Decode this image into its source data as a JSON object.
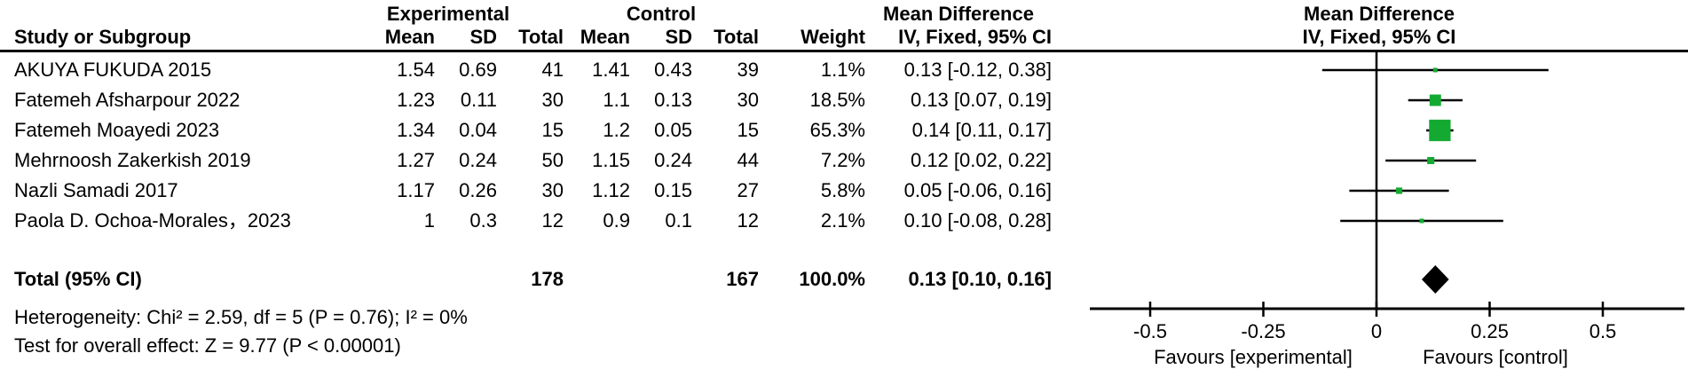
{
  "chart_data": {
    "type": "scatter",
    "subtype": "forest-plot-meta-analysis",
    "effect_measure": "Mean Difference, IV Fixed-effect, 95% CI",
    "group_headers": {
      "experimental": "Experimental",
      "control": "Control",
      "mean_difference_text": "Mean Difference",
      "mean_difference_plot": "Mean Difference"
    },
    "sub_headers": {
      "study": "Study or Subgroup",
      "mean": "Mean",
      "sd": "SD",
      "total": "Total",
      "weight": "Weight",
      "ci_text": "IV, Fixed, 95% CI",
      "ci_plot": "IV, Fixed, 95% CI"
    },
    "studies": [
      {
        "name": "AKUYA FUKUDA 2015",
        "exp_mean": "1.54",
        "exp_sd": "0.69",
        "exp_total": "41",
        "ctrl_mean": "1.41",
        "ctrl_sd": "0.43",
        "ctrl_total": "39",
        "weight": "1.1%",
        "ci_text": "0.13 [-0.12, 0.38]",
        "md": 0.13,
        "lo": -0.12,
        "hi": 0.38,
        "weight_pct": 1.1
      },
      {
        "name": "Fatemeh Afsharpour 2022",
        "exp_mean": "1.23",
        "exp_sd": "0.11",
        "exp_total": "30",
        "ctrl_mean": "1.1",
        "ctrl_sd": "0.13",
        "ctrl_total": "30",
        "weight": "18.5%",
        "ci_text": "0.13 [0.07, 0.19]",
        "md": 0.13,
        "lo": 0.07,
        "hi": 0.19,
        "weight_pct": 18.5
      },
      {
        "name": "Fatemeh Moayedi 2023",
        "exp_mean": "1.34",
        "exp_sd": "0.04",
        "exp_total": "15",
        "ctrl_mean": "1.2",
        "ctrl_sd": "0.05",
        "ctrl_total": "15",
        "weight": "65.3%",
        "ci_text": "0.14 [0.11, 0.17]",
        "md": 0.14,
        "lo": 0.11,
        "hi": 0.17,
        "weight_pct": 65.3
      },
      {
        "name": "Mehrnoosh Zakerkish 2019",
        "exp_mean": "1.27",
        "exp_sd": "0.24",
        "exp_total": "50",
        "ctrl_mean": "1.15",
        "ctrl_sd": "0.24",
        "ctrl_total": "44",
        "weight": "7.2%",
        "ci_text": "0.12 [0.02, 0.22]",
        "md": 0.12,
        "lo": 0.02,
        "hi": 0.22,
        "weight_pct": 7.2
      },
      {
        "name": "Nazli Samadi 2017",
        "exp_mean": "1.17",
        "exp_sd": "0.26",
        "exp_total": "30",
        "ctrl_mean": "1.12",
        "ctrl_sd": "0.15",
        "ctrl_total": "27",
        "weight": "5.8%",
        "ci_text": "0.05 [-0.06, 0.16]",
        "md": 0.05,
        "lo": -0.06,
        "hi": 0.16,
        "weight_pct": 5.8
      },
      {
        "name": "Paola D. Ochoa-Morales，2023",
        "exp_mean": "1",
        "exp_sd": "0.3",
        "exp_total": "12",
        "ctrl_mean": "0.9",
        "ctrl_sd": "0.1",
        "ctrl_total": "12",
        "weight": "2.1%",
        "ci_text": "0.10 [-0.08, 0.28]",
        "md": 0.1,
        "lo": -0.08,
        "hi": 0.28,
        "weight_pct": 2.1
      }
    ],
    "total": {
      "label": "Total (95% CI)",
      "exp_total": "178",
      "ctrl_total": "167",
      "weight": "100.0%",
      "ci_text": "0.13 [0.10, 0.16]",
      "md": 0.13,
      "lo": 0.1,
      "hi": 0.16
    },
    "footer": {
      "heterogeneity": "Heterogeneity: Chi² = 2.59, df = 5 (P = 0.76); I² = 0%",
      "overall_effect": "Test for overall effect: Z = 9.77 (P < 0.00001)"
    },
    "axis": {
      "xmin": -0.63,
      "xmax": 0.68,
      "ticks": [
        -0.5,
        -0.25,
        0,
        0.25,
        0.5
      ],
      "tick_labels": [
        "-0.5",
        "-0.25",
        "0",
        "0.25",
        "0.5"
      ],
      "favours_left": "Favours [experimental]",
      "favours_right": "Favours [control]"
    },
    "colors": {
      "square": "#14AA32",
      "diamond": "#000000",
      "line": "#000000"
    }
  }
}
